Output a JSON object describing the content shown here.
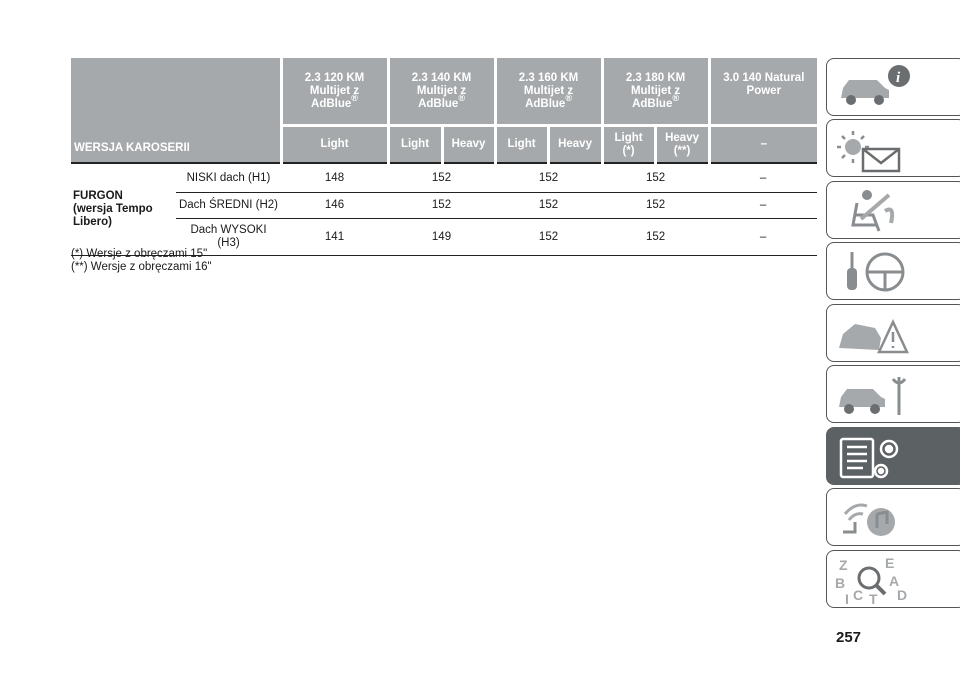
{
  "table": {
    "corner_label": "WERSJA KAROSERII",
    "engines": [
      {
        "line1": "2.3 120 KM",
        "line2": "Multijet z",
        "line3": "AdBlue",
        "sup": "®"
      },
      {
        "line1": "2.3 140 KM",
        "line2": "Multijet z",
        "line3": "AdBlue",
        "sup": "®"
      },
      {
        "line1": "2.3 160 KM",
        "line2": "Multijet z",
        "line3": "AdBlue",
        "sup": "®"
      },
      {
        "line1": "2.3 180 KM",
        "line2": "Multijet z",
        "line3": "AdBlue",
        "sup": "®"
      },
      {
        "line1": "3.0 140 Natural",
        "line2": "Power",
        "line3": "",
        "sup": ""
      }
    ],
    "variants": [
      {
        "line1": "Light",
        "line2": ""
      },
      {
        "line1": "Light",
        "line2": ""
      },
      {
        "line1": "Heavy",
        "line2": ""
      },
      {
        "line1": "Light",
        "line2": ""
      },
      {
        "line1": "Heavy",
        "line2": ""
      },
      {
        "line1": "Light",
        "line2": "(*)"
      },
      {
        "line1": "Heavy",
        "line2": "(**)"
      },
      {
        "line1": "–",
        "line2": ""
      }
    ],
    "group": {
      "line1": "FURGON",
      "line2": "(wersja Tempo",
      "line3": "Libero)"
    },
    "rows": [
      {
        "label1": "NISKI dach (H1)",
        "label2": "",
        "values": [
          "148",
          "152",
          "152",
          "152",
          "–"
        ]
      },
      {
        "label1": "Dach ŚREDNI (H2)",
        "label2": "",
        "values": [
          "146",
          "152",
          "152",
          "152",
          "–"
        ]
      },
      {
        "label1": "Dach WYSOKI",
        "label2": "(H3)",
        "values": [
          "141",
          "149",
          "152",
          "152",
          "–"
        ]
      }
    ]
  },
  "notes": [
    "(*) Wersje z obręczami 15\"",
    "(**) Wersje z obręczami 16\""
  ],
  "page_number": "257",
  "side_tabs": [
    {
      "icon": "car-info-icon"
    },
    {
      "icon": "warning-lights-icon"
    },
    {
      "icon": "seat-airbag-icon"
    },
    {
      "icon": "steering-key-icon"
    },
    {
      "icon": "car-accident-icon"
    },
    {
      "icon": "car-service-icon"
    },
    {
      "icon": "technical-data-icon",
      "active": true
    },
    {
      "icon": "multimedia-icon"
    },
    {
      "icon": "alphabetical-index-icon",
      "letters": [
        "Z",
        "E",
        "B",
        "A",
        "C",
        "D",
        "T",
        "I"
      ]
    }
  ]
}
